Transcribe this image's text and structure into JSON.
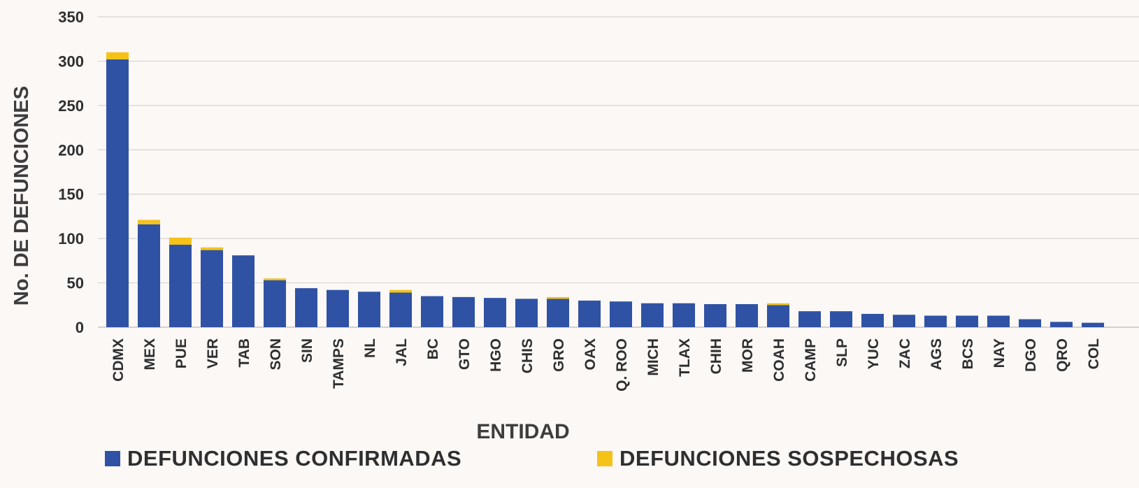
{
  "colors": {
    "confirmed": "#2f52a4",
    "suspected": "#f5c218",
    "grid": "#d9d4d0",
    "text": "#2f2f2f"
  },
  "chart_data": {
    "type": "bar",
    "stacked": true,
    "xlabel": "ENTIDAD",
    "ylabel": "No. DE DEFUNCIONES",
    "ylim": [
      0,
      350
    ],
    "yticks": [
      0,
      50,
      100,
      150,
      200,
      250,
      300,
      350
    ],
    "grid": true,
    "legend_position": "bottom",
    "categories": [
      "CDMX",
      "MEX",
      "PUE",
      "VER",
      "TAB",
      "SON",
      "SIN",
      "TAMPS",
      "NL",
      "JAL",
      "BC",
      "GTO",
      "HGO",
      "CHIS",
      "GRO",
      "OAX",
      "Q. ROO",
      "MICH",
      "TLAX",
      "CHIH",
      "MOR",
      "COAH",
      "CAMP",
      "SLP",
      "YUC",
      "ZAC",
      "AGS",
      "BCS",
      "NAY",
      "DGO",
      "QRO",
      "COL"
    ],
    "series": [
      {
        "name": "DEFUNCIONES CONFIRMADAS",
        "values": [
          302,
          116,
          93,
          87,
          81,
          53,
          44,
          42,
          40,
          39,
          35,
          34,
          33,
          32,
          32,
          30,
          29,
          27,
          27,
          26,
          26,
          25,
          18,
          18,
          15,
          14,
          13,
          13,
          13,
          9,
          6,
          5
        ]
      },
      {
        "name": "DEFUNCIONES SOSPECHOSAS",
        "values": [
          8,
          5,
          8,
          3,
          0,
          2,
          0,
          0,
          0,
          3,
          0,
          0,
          0,
          0,
          2,
          0,
          0,
          0,
          0,
          0,
          0,
          2,
          0,
          0,
          0,
          0,
          0,
          0,
          0,
          0,
          0,
          0
        ]
      }
    ]
  }
}
